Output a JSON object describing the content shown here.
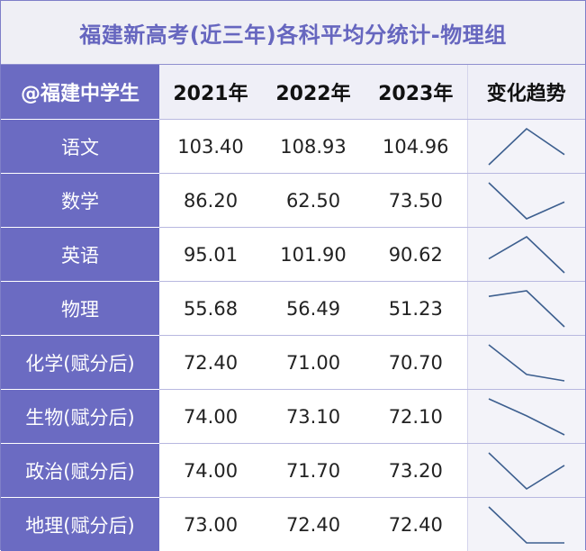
{
  "title": "福建新高考(近三年)各科平均分统计-物理组",
  "header": {
    "corner": "@福建中学生",
    "years": [
      "2021年",
      "2022年",
      "2023年"
    ],
    "trend": "变化趋势"
  },
  "colors": {
    "accent": "#6b6bc2",
    "title_text": "#6666bf",
    "trend_line": "#3d5f8f"
  },
  "chart_data": {
    "type": "table",
    "title": "福建新高考(近三年)各科平均分统计-物理组",
    "columns": [
      "@福建中学生",
      "2021年",
      "2022年",
      "2023年",
      "变化趋势"
    ],
    "x": [
      "2021年",
      "2022年",
      "2023年"
    ],
    "rows": [
      {
        "subject": "语文",
        "values": [
          "103.40",
          "108.93",
          "104.96"
        ]
      },
      {
        "subject": "数学",
        "values": [
          "86.20",
          "62.50",
          "73.50"
        ]
      },
      {
        "subject": "英语",
        "values": [
          "95.01",
          "101.90",
          "90.62"
        ]
      },
      {
        "subject": "物理",
        "values": [
          "55.68",
          "56.49",
          "51.23"
        ]
      },
      {
        "subject": "化学(赋分后)",
        "values": [
          "72.40",
          "71.00",
          "70.70"
        ]
      },
      {
        "subject": "生物(赋分后)",
        "values": [
          "74.00",
          "73.10",
          "72.10"
        ]
      },
      {
        "subject": "政治(赋分后)",
        "values": [
          "74.00",
          "71.70",
          "73.20"
        ]
      },
      {
        "subject": "地理(赋分后)",
        "values": [
          "73.00",
          "72.40",
          "72.40"
        ]
      }
    ]
  }
}
